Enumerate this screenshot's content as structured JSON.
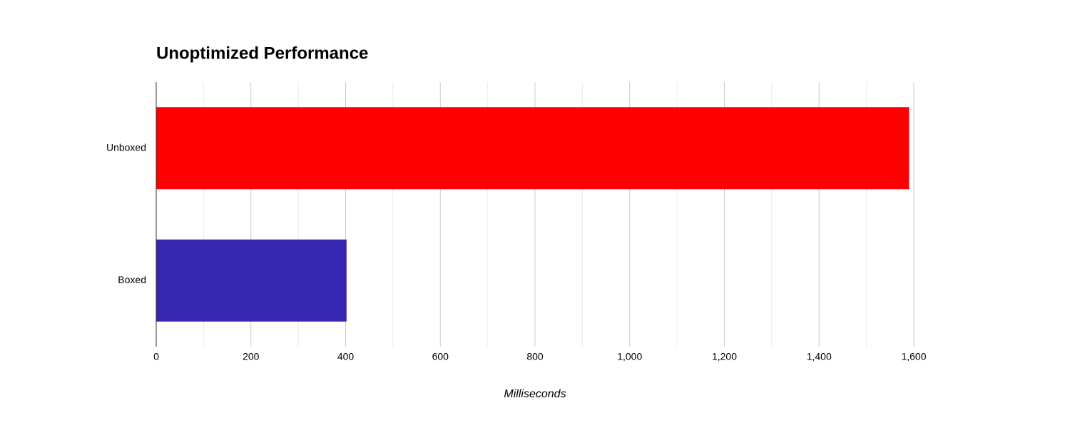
{
  "chart_data": {
    "type": "barh",
    "title": "Unoptimized Performance",
    "x_label": "Milliseconds",
    "categories": [
      "Unboxed",
      "Boxed"
    ],
    "values": [
      1590,
      402
    ],
    "colors": [
      "#ff0000",
      "#3726b0"
    ],
    "xlim": [
      0,
      1600
    ],
    "xticks": [
      0,
      200,
      400,
      600,
      800,
      {
        "value": 1000,
        "label": "1,000"
      },
      {
        "value": 1200,
        "label": "1,200"
      },
      {
        "value": 1400,
        "label": "1,400"
      },
      {
        "value": 1600,
        "label": "1,600"
      }
    ],
    "minor_xticks": [
      100,
      300,
      500,
      700,
      900,
      1100,
      1300,
      1500
    ],
    "grid": true
  }
}
